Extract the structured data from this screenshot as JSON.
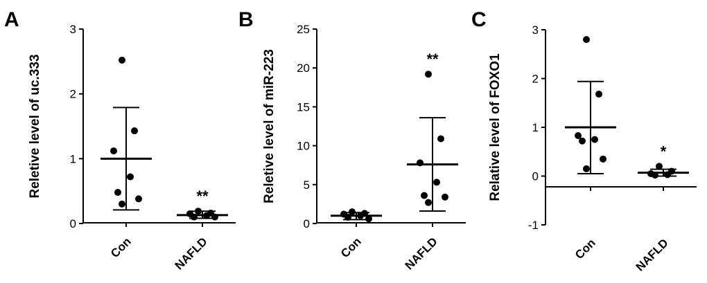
{
  "chart_data": [
    {
      "panel": "A",
      "type": "scatter",
      "ylabel": "Reletive level of  uc.333",
      "ylim": [
        0,
        3
      ],
      "yticks": [
        0,
        1,
        2,
        3
      ],
      "categories": [
        "Con",
        "NAFLD"
      ],
      "groups": [
        {
          "category": "Con",
          "points": [
            2.52,
            1.43,
            1.12,
            0.72,
            0.48,
            0.38,
            0.3
          ],
          "mean": 1.0,
          "sd_low": 0.21,
          "sd_high": 1.79,
          "sig": ""
        },
        {
          "category": "NAFLD",
          "points": [
            0.19,
            0.16,
            0.15,
            0.12,
            0.1,
            0.1
          ],
          "mean": 0.13,
          "sd_low": 0.08,
          "sd_high": 0.19,
          "sig": "**"
        }
      ]
    },
    {
      "panel": "B",
      "type": "scatter",
      "ylabel": "Reletive level of miR-223",
      "ylim": [
        0,
        25
      ],
      "yticks": [
        0,
        5,
        10,
        15,
        20,
        25
      ],
      "categories": [
        "Con",
        "NAFLD"
      ],
      "groups": [
        {
          "category": "Con",
          "points": [
            1.5,
            1.3,
            1.2,
            1.0,
            0.8,
            0.6
          ],
          "mean": 1.0,
          "sd_low": 0.5,
          "sd_high": 1.4,
          "sig": ""
        },
        {
          "category": "NAFLD",
          "points": [
            19.2,
            10.9,
            7.8,
            5.3,
            3.6,
            3.4,
            2.7
          ],
          "mean": 7.6,
          "sd_low": 1.6,
          "sd_high": 13.6,
          "sig": "**"
        }
      ]
    },
    {
      "panel": "C",
      "type": "scatter",
      "ylabel": "Relative level of FOXO1",
      "ylim": [
        -1,
        3
      ],
      "yticks": [
        -1,
        0,
        1,
        2,
        3
      ],
      "categories": [
        "Con",
        "NAFLD"
      ],
      "groups": [
        {
          "category": "Con",
          "points": [
            2.8,
            1.68,
            0.83,
            0.75,
            0.72,
            0.35,
            0.15
          ],
          "mean": 1.0,
          "sd_low": 0.05,
          "sd_high": 1.94,
          "sig": ""
        },
        {
          "category": "NAFLD",
          "points": [
            0.2,
            0.1,
            0.05,
            0.03,
            0.02
          ],
          "mean": 0.07,
          "sd_low": 0.0,
          "sd_high": 0.14,
          "sig": "*"
        }
      ]
    }
  ]
}
